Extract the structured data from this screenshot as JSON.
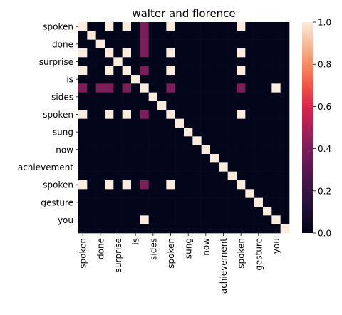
{
  "chart_data": {
    "type": "heatmap",
    "title": "walter and florence",
    "xlabel": "",
    "ylabel": "",
    "x_labels": [
      "spoken",
      "",
      "done",
      "",
      "surprise",
      "",
      "is",
      "",
      "sides",
      "",
      "spoken",
      "",
      "sung",
      "",
      "now",
      "",
      "achievement",
      "",
      "spoken",
      "",
      "gesture",
      "",
      "you",
      ""
    ],
    "y_labels": [
      "spoken",
      "",
      "done",
      "",
      "surprise",
      "",
      "is",
      "",
      "sides",
      "",
      "spoken",
      "",
      "sung",
      "",
      "now",
      "",
      "achievement",
      "",
      "spoken",
      "",
      "gesture",
      "",
      "you",
      ""
    ],
    "colorbar": {
      "min": 0.0,
      "max": 1.0,
      "ticks": [
        "0.0",
        "0.2",
        "0.4",
        "0.6",
        "0.8",
        "1.0"
      ]
    },
    "values": [
      [
        1,
        0,
        0,
        1,
        0,
        1,
        0,
        0.4,
        0,
        0,
        1,
        0,
        0,
        0,
        0,
        0,
        0,
        0,
        1,
        0,
        0,
        0,
        0,
        0
      ],
      [
        0,
        1,
        0,
        0,
        0,
        0,
        0,
        0.4,
        0,
        0,
        0,
        0,
        0,
        0,
        0,
        0,
        0,
        0,
        0,
        0,
        0,
        0,
        0,
        0
      ],
      [
        0,
        0,
        1,
        0,
        0,
        0,
        0,
        0.4,
        0,
        0,
        0,
        0,
        0,
        0,
        0,
        0,
        0,
        0,
        0,
        0,
        0,
        0,
        0,
        0
      ],
      [
        1,
        0,
        0,
        1,
        0,
        1,
        0,
        0.4,
        0,
        0,
        1,
        0,
        0,
        0,
        0,
        0,
        0,
        0,
        1,
        0,
        0,
        0,
        0,
        0
      ],
      [
        0,
        0,
        0,
        0,
        1,
        0,
        0,
        0,
        0,
        0,
        0,
        0,
        0,
        0,
        0,
        0,
        0,
        0,
        0,
        0,
        0,
        0,
        0,
        0
      ],
      [
        1,
        0,
        0,
        1,
        0,
        1,
        0,
        0.4,
        0,
        0,
        1,
        0,
        0,
        0,
        0,
        0,
        0,
        0,
        1,
        0,
        0,
        0,
        0,
        0
      ],
      [
        0,
        0,
        0,
        0,
        0,
        0,
        1,
        0,
        0,
        0,
        0,
        0,
        0,
        0,
        0,
        0,
        0,
        0,
        0,
        0,
        0,
        0,
        0,
        0
      ],
      [
        0.4,
        0,
        0.4,
        0.4,
        0,
        0.4,
        0,
        1,
        0,
        0,
        0.4,
        0,
        0,
        0,
        0,
        0,
        0,
        0,
        0.4,
        0,
        0,
        0,
        1,
        0
      ],
      [
        0,
        0,
        0,
        0,
        0,
        0,
        0,
        0,
        1,
        0,
        0,
        0,
        0,
        0,
        0,
        0,
        0,
        0,
        0,
        0,
        0,
        0,
        0,
        0
      ],
      [
        0,
        0,
        0,
        0,
        0,
        0,
        0,
        0,
        0,
        1,
        0,
        0,
        0,
        0,
        0,
        0,
        0,
        0,
        0,
        0,
        0,
        0,
        0,
        0
      ],
      [
        1,
        0,
        0,
        1,
        0,
        1,
        0,
        0.4,
        0,
        0,
        1,
        0,
        0,
        0,
        0,
        0,
        0,
        0,
        1,
        0,
        0,
        0,
        0,
        0
      ],
      [
        0,
        0,
        0,
        0,
        0,
        0,
        0,
        0,
        0,
        0,
        0,
        1,
        0,
        0,
        0,
        0,
        0,
        0,
        0,
        0,
        0,
        0,
        0,
        0
      ],
      [
        0,
        0,
        0,
        0,
        0,
        0,
        0,
        0,
        0,
        0,
        0,
        0,
        1,
        0,
        0,
        0,
        0,
        0,
        0,
        0,
        0,
        0,
        0,
        0
      ],
      [
        0,
        0,
        0,
        0,
        0,
        0,
        0,
        0,
        0,
        0,
        0,
        0,
        0,
        1,
        0,
        0,
        0,
        0,
        0,
        0,
        0,
        0,
        0,
        0
      ],
      [
        0,
        0,
        0,
        0,
        0,
        0,
        0,
        0,
        0,
        0,
        0,
        0,
        0,
        0,
        1,
        0,
        0,
        0,
        0,
        0,
        0,
        0,
        0,
        0
      ],
      [
        0,
        0,
        0,
        0,
        0,
        0,
        0,
        0,
        0,
        0,
        0,
        0,
        0,
        0,
        0,
        1,
        0,
        0,
        0,
        0,
        0,
        0,
        0,
        0
      ],
      [
        0,
        0,
        0,
        0,
        0,
        0,
        0,
        0,
        0,
        0,
        0,
        0,
        0,
        0,
        0,
        0,
        1,
        0,
        0,
        0,
        0,
        0,
        0,
        0
      ],
      [
        0,
        0,
        0,
        0,
        0,
        0,
        0,
        0,
        0,
        0,
        0,
        0,
        0,
        0,
        0,
        0,
        0,
        1,
        0,
        0,
        0,
        0,
        0,
        0
      ],
      [
        1,
        0,
        0,
        1,
        0,
        1,
        0,
        0.4,
        0,
        0,
        1,
        0,
        0,
        0,
        0,
        0,
        0,
        0,
        1,
        0,
        0,
        0,
        0,
        0
      ],
      [
        0,
        0,
        0,
        0,
        0,
        0,
        0,
        0,
        0,
        0,
        0,
        0,
        0,
        0,
        0,
        0,
        0,
        0,
        0,
        1,
        0,
        0,
        0,
        0
      ],
      [
        0,
        0,
        0,
        0,
        0,
        0,
        0,
        0,
        0,
        0,
        0,
        0,
        0,
        0,
        0,
        0,
        0,
        0,
        0,
        0,
        1,
        0,
        0,
        0
      ],
      [
        0,
        0,
        0,
        0,
        0,
        0,
        0,
        0,
        0,
        0,
        0,
        0,
        0,
        0,
        0,
        0,
        0,
        0,
        0,
        0,
        0,
        1,
        0,
        0
      ],
      [
        0,
        0,
        0,
        0,
        0,
        0,
        0,
        1,
        0,
        0,
        0,
        0,
        0,
        0,
        0,
        0,
        0,
        0,
        0,
        0,
        0,
        0,
        1,
        0
      ],
      [
        0,
        0,
        0,
        0,
        0,
        0,
        0,
        0,
        0,
        0,
        0,
        0,
        0,
        0,
        0,
        0,
        0,
        0,
        0,
        0,
        0,
        0,
        0,
        1
      ]
    ]
  }
}
